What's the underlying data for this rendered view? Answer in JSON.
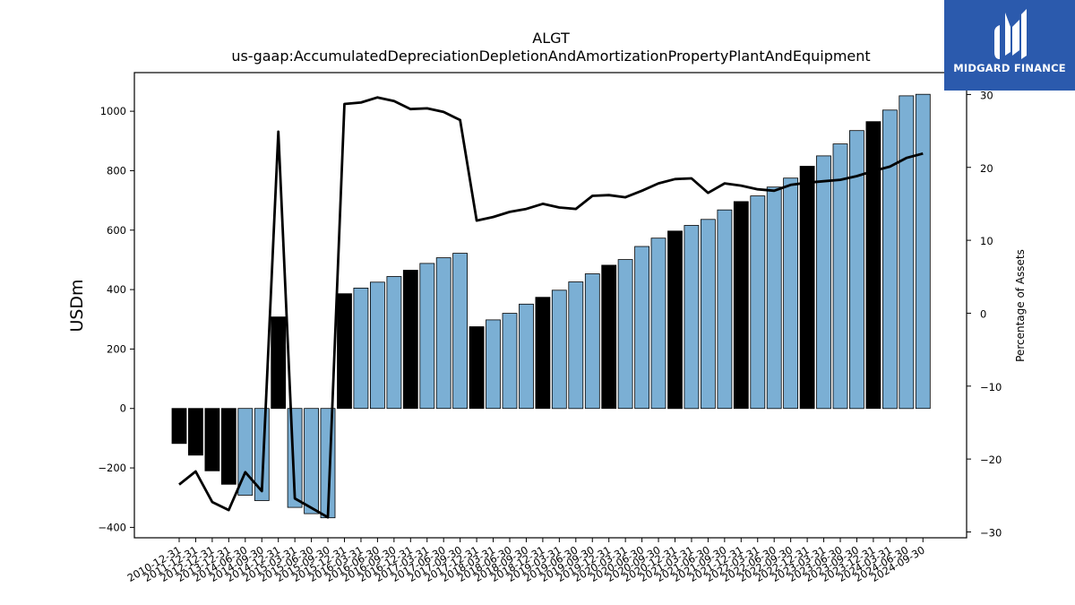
{
  "brand": {
    "name": "MIDGARD FINANCE",
    "bg_color": "#2b5aad"
  },
  "chart_data": {
    "type": "bar",
    "title": "ALGT",
    "subtitle": "us-gaap:AccumulatedDepreciationDepletionAndAmortizationPropertyPlantAndEquipment",
    "ylabel": "USDm",
    "y2label": "Percentage of Assets",
    "ylim": [
      -435,
      1130
    ],
    "y2lim": [
      -30.8,
      33
    ],
    "yticks": [
      -400,
      -200,
      0,
      200,
      400,
      600,
      800,
      1000
    ],
    "y2ticks": [
      -30,
      -20,
      -10,
      0,
      10,
      20,
      30
    ],
    "y2tick_labels": [
      "−30",
      "−20",
      "−10",
      "0",
      "10",
      "20",
      "30"
    ],
    "ytick_labels": [
      "−400",
      "−200",
      "0",
      "200",
      "400",
      "600",
      "800",
      "1000"
    ],
    "categories": [
      "2010-12-31",
      "2011-12-31",
      "2012-12-31",
      "2013-12-31",
      "2014-06-30",
      "2014-09-30",
      "2014-12-31",
      "2015-03-31",
      "2015-06-30",
      "2015-09-30",
      "2015-12-31",
      "2016-03-31",
      "2016-06-30",
      "2016-09-30",
      "2016-12-31",
      "2017-03-31",
      "2017-06-30",
      "2017-09-30",
      "2017-12-31",
      "2018-03-31",
      "2018-06-30",
      "2018-09-30",
      "2018-12-31",
      "2019-03-31",
      "2019-06-30",
      "2019-09-30",
      "2019-12-31",
      "2020-03-31",
      "2020-06-30",
      "2020-09-30",
      "2020-12-31",
      "2021-03-31",
      "2021-06-30",
      "2021-09-30",
      "2021-12-31",
      "2022-03-31",
      "2022-06-30",
      "2022-09-30",
      "2022-12-31",
      "2023-03-31",
      "2023-06-30",
      "2023-09-30",
      "2023-12-31",
      "2024-03-31",
      "2024-06-30",
      "2024-09-30"
    ],
    "tick_labels": [
      "2010-12-31",
      "2011-12-31",
      "2012-12-31",
      "2013-12-31",
      "2014-06-30",
      "2014-09-30",
      "2014-12-31",
      "2015-03-31",
      "2015-06-30",
      "2015-09-30",
      "2015-12-31",
      "2016-03-31",
      "2016-06-30",
      "2016-09-30",
      "2016-12-31",
      "2017-03-31",
      "2017-06-30",
      "2017-09-30",
      "2017-12-31",
      "2018-03-31",
      "2018-06-30",
      "2018-09-30",
      "2018-12-31",
      "2019-03-31",
      "2019-06-30",
      "2019-09-30",
      "2019-12-31",
      "2020-03-31",
      "2020-06-30",
      "2020-09-30",
      "2020-12-31",
      "2021-03-31",
      "2021-06-30",
      "2021-09-30",
      "2021-12-31",
      "2022-03-31",
      "2022-06-30",
      "2022-09-30",
      "2022-12-31",
      "2023-03-31",
      "2023-06-30",
      "2023-09-30",
      "2023-12-31",
      "2024-03-31",
      "2024-06-30",
      "2024-09-30"
    ],
    "series": [
      {
        "type": "bar",
        "axis": "left",
        "values": [
          -118,
          -157,
          -210,
          -255,
          -292,
          -310,
          308,
          -333,
          -354,
          -368,
          386,
          405,
          425,
          444,
          465,
          488,
          507,
          522,
          275,
          298,
          320,
          351,
          374,
          398,
          426,
          453,
          482,
          501,
          545,
          573,
          597,
          616,
          636,
          668,
          696,
          715,
          745,
          775,
          815,
          850,
          890,
          935,
          965,
          1004,
          1052,
          1057
        ],
        "colors": [
          "#000000",
          "#000000",
          "#000000",
          "#000000",
          "#7bafd4",
          "#7bafd4",
          "#000000",
          "#7bafd4",
          "#7bafd4",
          "#7bafd4",
          "#000000",
          "#7bafd4",
          "#7bafd4",
          "#7bafd4",
          "#000000",
          "#7bafd4",
          "#7bafd4",
          "#7bafd4",
          "#000000",
          "#7bafd4",
          "#7bafd4",
          "#7bafd4",
          "#000000",
          "#7bafd4",
          "#7bafd4",
          "#7bafd4",
          "#000000",
          "#7bafd4",
          "#7bafd4",
          "#7bafd4",
          "#000000",
          "#7bafd4",
          "#7bafd4",
          "#7bafd4",
          "#000000",
          "#7bafd4",
          "#7bafd4",
          "#7bafd4",
          "#000000",
          "#7bafd4",
          "#7bafd4",
          "#7bafd4",
          "#000000",
          "#7bafd4",
          "#7bafd4",
          "#7bafd4"
        ]
      },
      {
        "type": "line",
        "axis": "right",
        "color": "#000000",
        "values": [
          -23.5,
          -21.7,
          -25.9,
          -27.0,
          -21.8,
          -24.4,
          24.9,
          -25.4,
          -26.7,
          -28.0,
          28.7,
          28.9,
          29.6,
          29.1,
          28.0,
          28.1,
          27.6,
          26.5,
          12.7,
          13.2,
          13.9,
          14.3,
          15.0,
          14.5,
          14.3,
          16.1,
          16.2,
          15.9,
          16.8,
          17.8,
          18.4,
          18.5,
          16.5,
          17.8,
          17.5,
          17.0,
          16.8,
          17.6,
          17.9,
          18.1,
          18.3,
          18.8,
          19.5,
          20.1,
          21.3,
          21.9
        ]
      }
    ],
    "legend": "none",
    "grid": false
  }
}
